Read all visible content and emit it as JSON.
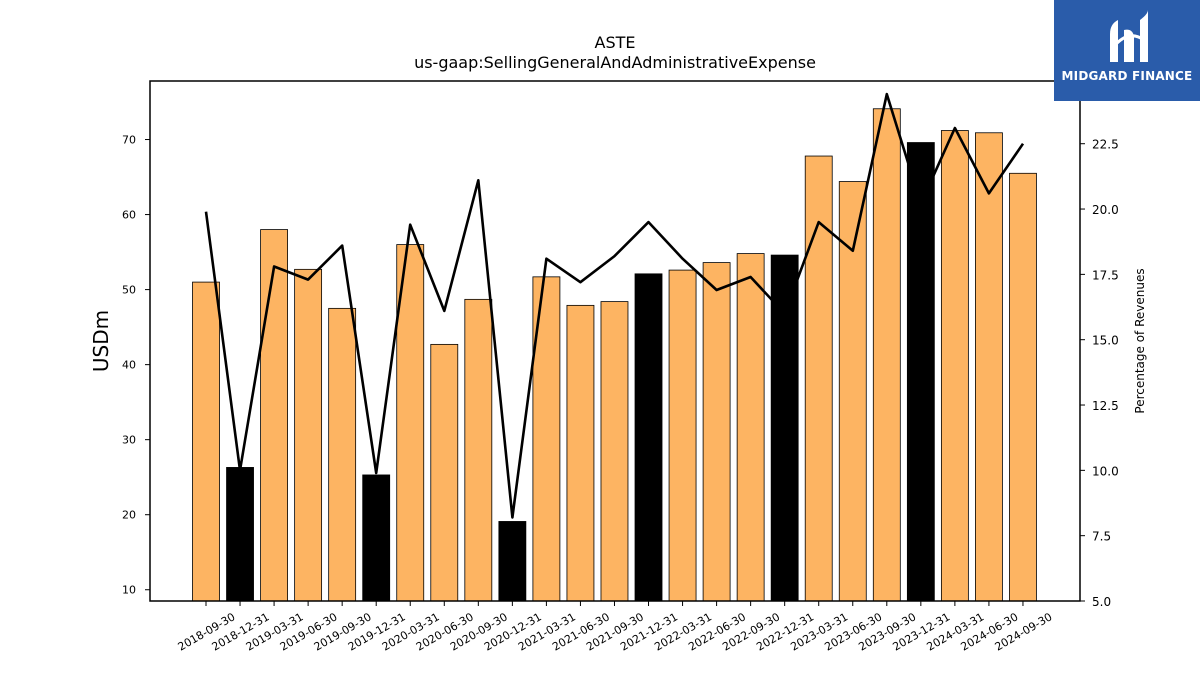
{
  "chart_data": {
    "type": "bar",
    "title": "ASTE",
    "subtitle": "us-gaap:SellingGeneralAndAdministrativeExpense",
    "ylabel": "USDm",
    "ylabel_right": "Percentage of Revenues",
    "ylim": [
      8.5,
      77.8
    ],
    "ylim_right": [
      5.0,
      24.9
    ],
    "yticks": [
      10,
      20,
      30,
      40,
      50,
      60,
      70
    ],
    "yticks_right": [
      "5.0",
      "7.5",
      "10.0",
      "12.5",
      "15.0",
      "17.5",
      "20.0",
      "22.5"
    ],
    "categories": [
      "2018-09-30",
      "2018-12-31",
      "2019-03-31",
      "2019-06-30",
      "2019-09-30",
      "2019-12-31",
      "2020-03-31",
      "2020-06-30",
      "2020-09-30",
      "2020-12-31",
      "2021-03-31",
      "2021-06-30",
      "2021-09-30",
      "2021-12-31",
      "2022-03-31",
      "2022-06-30",
      "2022-09-30",
      "2022-12-31",
      "2023-03-31",
      "2023-06-30",
      "2023-09-30",
      "2023-12-31",
      "2024-03-31",
      "2024-06-30",
      "2024-09-30"
    ],
    "series": [
      {
        "type": "bar",
        "values": [
          51.0,
          26.3,
          58.0,
          52.7,
          47.5,
          25.3,
          56.0,
          42.7,
          48.7,
          19.1,
          51.7,
          47.9,
          48.4,
          52.1,
          52.6,
          53.6,
          54.8,
          54.6,
          67.8,
          64.4,
          74.1,
          69.6,
          71.2,
          70.9,
          65.5
        ],
        "colors": [
          "#fdb462",
          "#000000",
          "#fdb462",
          "#fdb462",
          "#fdb462",
          "#000000",
          "#fdb462",
          "#fdb462",
          "#fdb462",
          "#000000",
          "#fdb462",
          "#fdb462",
          "#fdb462",
          "#000000",
          "#fdb462",
          "#fdb462",
          "#fdb462",
          "#000000",
          "#fdb462",
          "#fdb462",
          "#fdb462",
          "#000000",
          "#fdb462",
          "#fdb462",
          "#fdb462"
        ]
      },
      {
        "type": "line",
        "axis": "right",
        "values": [
          19.9,
          10.0,
          17.8,
          17.3,
          18.6,
          9.9,
          19.4,
          16.1,
          21.1,
          8.2,
          18.1,
          17.2,
          18.2,
          19.5,
          18.1,
          16.9,
          17.4,
          16.0,
          19.5,
          18.4,
          24.4,
          20.2,
          23.1,
          20.6,
          22.5
        ],
        "color": "#000000"
      }
    ],
    "grid": false
  },
  "logo": {
    "text": "MIDGARD FINANCE",
    "color": "#2a5caa"
  }
}
